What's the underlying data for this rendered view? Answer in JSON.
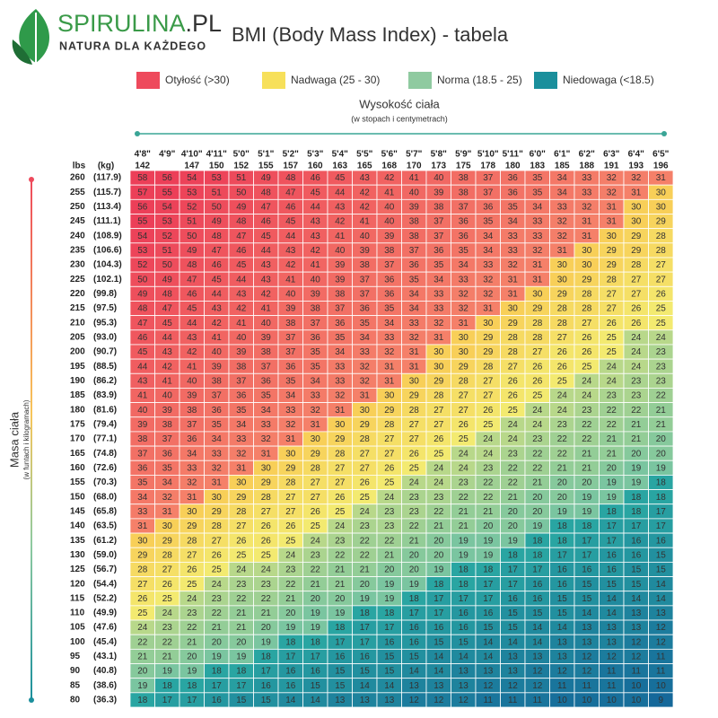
{
  "logo": {
    "name": "SPIRULINA",
    "suffix": ".PL",
    "tagline": "NATURA DLA KAŻDEGO"
  },
  "title": "BMI (Body Mass Index) - tabela",
  "legend": [
    {
      "label": "Otyłość (>30)",
      "color": "#ee4a5c",
      "min": 30
    },
    {
      "label": "Nadwaga (25 - 30)",
      "color": "#f7e05a",
      "min": 25
    },
    {
      "label": "Norma (18.5 - 25)",
      "color": "#8fcaa0",
      "min": 18.5
    },
    {
      "label": "Niedowaga (<18.5)",
      "color": "#1a8f9c"
    }
  ],
  "height_axis": {
    "title": "Wysokość ciała",
    "subtitle": "(w stopach i centymetrach)"
  },
  "weight_axis": {
    "title": "Masa ciała",
    "subtitle": "(w funtach i kilogramach)",
    "lbs_label": "lbs",
    "kg_label": "(kg)"
  },
  "table": {
    "heights_ft": [
      "4'8\"",
      "4'9\"",
      "4'10\"",
      "4'11\"",
      "5'0\"",
      "5'1\"",
      "5'2\"",
      "5'3\"",
      "5'4\"",
      "5'5\"",
      "5'6\"",
      "5'7\"",
      "5'8\"",
      "5'9\"",
      "5'10\"",
      "5'11\"",
      "6'0\"",
      "6'1\"",
      "6'2\"",
      "6'3\"",
      "6'4\"",
      "6'5\""
    ],
    "heights_cm": [
      142,
      null,
      147,
      150,
      152,
      155,
      157,
      160,
      163,
      165,
      168,
      170,
      173,
      175,
      178,
      180,
      183,
      185,
      188,
      191,
      193,
      196
    ],
    "weights_lbs": [
      260,
      255,
      250,
      245,
      240,
      235,
      230,
      225,
      220,
      215,
      210,
      205,
      200,
      195,
      190,
      185,
      180,
      175,
      170,
      165,
      160,
      155,
      150,
      145,
      140,
      135,
      130,
      125,
      120,
      115,
      110,
      105,
      100,
      95,
      90,
      85,
      80
    ],
    "weights_kg": [
      "(117.9)",
      "(115.7)",
      "(113.4)",
      "(111.1)",
      "(108.9)",
      "(106.6)",
      "(104.3)",
      "(102.1)",
      "(99.8)",
      "(97.5)",
      "(95.3)",
      "(93.0)",
      "(90.7)",
      "(88.5)",
      "(86.2)",
      "(83.9)",
      "(81.6)",
      "(79.4)",
      "(77.1)",
      "(74.8)",
      "(72.6)",
      "(70.3)",
      "(68.0)",
      "(65.8)",
      "(63.5)",
      "(61.2)",
      "(59.0)",
      "(56.7)",
      "(54.4)",
      "(52.2)",
      "(49.9)",
      "(47.6)",
      "(45.4)",
      "(43.1)",
      "(40.8)",
      "(38.6)",
      "(36.3)"
    ],
    "rows": [
      [
        58,
        56,
        54,
        53,
        51,
        49,
        48,
        46,
        45,
        43,
        42,
        41,
        40,
        38,
        37,
        36,
        35,
        34,
        33,
        32,
        32,
        31
      ],
      [
        57,
        55,
        53,
        51,
        50,
        48,
        47,
        45,
        44,
        42,
        41,
        40,
        39,
        38,
        37,
        36,
        35,
        34,
        33,
        32,
        31,
        30
      ],
      [
        56,
        54,
        52,
        50,
        49,
        47,
        46,
        44,
        43,
        42,
        40,
        39,
        38,
        37,
        36,
        35,
        34,
        33,
        32,
        31,
        30,
        30
      ],
      [
        55,
        53,
        51,
        49,
        48,
        46,
        45,
        43,
        42,
        41,
        40,
        38,
        37,
        36,
        35,
        34,
        33,
        32,
        31,
        31,
        30,
        29
      ],
      [
        54,
        52,
        50,
        48,
        47,
        45,
        44,
        43,
        41,
        40,
        39,
        38,
        37,
        36,
        34,
        33,
        33,
        32,
        31,
        30,
        29,
        28
      ],
      [
        53,
        51,
        49,
        47,
        46,
        44,
        43,
        42,
        40,
        39,
        38,
        37,
        36,
        35,
        34,
        33,
        32,
        31,
        30,
        29,
        29,
        28
      ],
      [
        52,
        50,
        48,
        46,
        45,
        43,
        42,
        41,
        39,
        38,
        37,
        36,
        35,
        34,
        33,
        32,
        31,
        30,
        30,
        29,
        28,
        27
      ],
      [
        50,
        49,
        47,
        45,
        44,
        43,
        41,
        40,
        39,
        37,
        36,
        35,
        34,
        33,
        32,
        31,
        31,
        30,
        29,
        28,
        27,
        27
      ],
      [
        49,
        48,
        46,
        44,
        43,
        42,
        40,
        39,
        38,
        37,
        36,
        34,
        33,
        32,
        32,
        31,
        30,
        29,
        28,
        27,
        27,
        26
      ],
      [
        48,
        47,
        45,
        43,
        42,
        41,
        39,
        38,
        37,
        36,
        35,
        34,
        33,
        32,
        31,
        30,
        29,
        28,
        28,
        27,
        26,
        25
      ],
      [
        47,
        45,
        44,
        42,
        41,
        40,
        38,
        37,
        36,
        35,
        34,
        33,
        32,
        31,
        30,
        29,
        28,
        28,
        27,
        26,
        26,
        25
      ],
      [
        46,
        44,
        43,
        41,
        40,
        39,
        37,
        36,
        35,
        34,
        33,
        32,
        31,
        30,
        29,
        28,
        28,
        27,
        26,
        25,
        24,
        24
      ],
      [
        45,
        43,
        42,
        40,
        39,
        38,
        37,
        35,
        34,
        33,
        32,
        31,
        30,
        30,
        29,
        28,
        27,
        26,
        26,
        25,
        24,
        23
      ],
      [
        44,
        42,
        41,
        39,
        38,
        37,
        36,
        35,
        33,
        32,
        31,
        31,
        30,
        29,
        28,
        27,
        26,
        26,
        25,
        24,
        24,
        23
      ],
      [
        43,
        41,
        40,
        38,
        37,
        36,
        35,
        34,
        33,
        32,
        31,
        30,
        29,
        28,
        27,
        26,
        26,
        25,
        24,
        24,
        23,
        23
      ],
      [
        41,
        40,
        39,
        37,
        36,
        35,
        34,
        33,
        32,
        31,
        30,
        29,
        28,
        27,
        27,
        26,
        25,
        24,
        24,
        23,
        23,
        22
      ],
      [
        40,
        39,
        38,
        36,
        35,
        34,
        33,
        32,
        31,
        30,
        29,
        28,
        27,
        27,
        26,
        25,
        24,
        24,
        23,
        22,
        22,
        21
      ],
      [
        39,
        38,
        37,
        35,
        34,
        33,
        32,
        31,
        30,
        29,
        28,
        27,
        27,
        26,
        25,
        24,
        24,
        23,
        22,
        22,
        21,
        21
      ],
      [
        38,
        37,
        36,
        34,
        33,
        32,
        31,
        30,
        29,
        28,
        27,
        27,
        26,
        25,
        24,
        24,
        23,
        22,
        22,
        21,
        21,
        20
      ],
      [
        37,
        36,
        34,
        33,
        32,
        31,
        30,
        29,
        28,
        27,
        27,
        26,
        25,
        24,
        24,
        23,
        22,
        22,
        21,
        21,
        20,
        20
      ],
      [
        36,
        35,
        33,
        32,
        31,
        30,
        29,
        28,
        27,
        27,
        26,
        25,
        24,
        24,
        23,
        22,
        22,
        21,
        21,
        20,
        19,
        19
      ],
      [
        35,
        34,
        32,
        31,
        30,
        29,
        28,
        27,
        27,
        26,
        25,
        24,
        24,
        23,
        22,
        22,
        21,
        20,
        20,
        19,
        19,
        18
      ],
      [
        34,
        32,
        31,
        30,
        29,
        28,
        27,
        27,
        26,
        25,
        24,
        23,
        23,
        22,
        22,
        21,
        20,
        20,
        19,
        19,
        18,
        18
      ],
      [
        33,
        31,
        30,
        29,
        28,
        27,
        27,
        26,
        25,
        24,
        23,
        23,
        22,
        21,
        21,
        20,
        20,
        19,
        19,
        18,
        18,
        17
      ],
      [
        31,
        30,
        29,
        28,
        27,
        26,
        26,
        25,
        24,
        23,
        23,
        22,
        21,
        21,
        20,
        20,
        19,
        18,
        18,
        17,
        17,
        17
      ],
      [
        30,
        29,
        28,
        27,
        26,
        26,
        25,
        24,
        23,
        22,
        22,
        21,
        20,
        19,
        19,
        19,
        18,
        18,
        17,
        17,
        16,
        16
      ],
      [
        29,
        28,
        27,
        26,
        25,
        25,
        24,
        23,
        22,
        22,
        21,
        20,
        20,
        19,
        19,
        18,
        18,
        17,
        17,
        16,
        16,
        15
      ],
      [
        28,
        27,
        26,
        25,
        24,
        24,
        23,
        22,
        21,
        21,
        20,
        20,
        19,
        18,
        18,
        17,
        17,
        16,
        16,
        16,
        15,
        15
      ],
      [
        27,
        26,
        25,
        24,
        23,
        23,
        22,
        21,
        21,
        20,
        19,
        19,
        18,
        18,
        17,
        17,
        16,
        16,
        15,
        15,
        15,
        14
      ],
      [
        26,
        25,
        24,
        23,
        22,
        22,
        21,
        20,
        20,
        19,
        19,
        18,
        17,
        17,
        17,
        16,
        16,
        15,
        15,
        14,
        14,
        14
      ],
      [
        25,
        24,
        23,
        22,
        21,
        21,
        20,
        19,
        19,
        18,
        18,
        17,
        17,
        16,
        16,
        15,
        15,
        15,
        14,
        14,
        13,
        13
      ],
      [
        24,
        23,
        22,
        21,
        21,
        20,
        19,
        19,
        18,
        17,
        17,
        16,
        16,
        16,
        15,
        15,
        14,
        14,
        13,
        13,
        13,
        12
      ],
      [
        22,
        22,
        21,
        20,
        20,
        19,
        18,
        18,
        17,
        17,
        16,
        16,
        15,
        15,
        14,
        14,
        14,
        13,
        13,
        13,
        12,
        12
      ],
      [
        21,
        21,
        20,
        19,
        19,
        18,
        17,
        17,
        16,
        16,
        15,
        15,
        14,
        14,
        14,
        13,
        13,
        13,
        12,
        12,
        12,
        11
      ],
      [
        20,
        19,
        19,
        18,
        18,
        17,
        16,
        16,
        15,
        15,
        15,
        14,
        14,
        13,
        13,
        13,
        12,
        12,
        12,
        11,
        11,
        11
      ],
      [
        19,
        18,
        18,
        17,
        17,
        16,
        16,
        15,
        15,
        14,
        14,
        13,
        13,
        13,
        12,
        12,
        12,
        11,
        11,
        11,
        10,
        10
      ],
      [
        18,
        17,
        17,
        16,
        15,
        15,
        14,
        14,
        13,
        13,
        13,
        12,
        12,
        12,
        11,
        11,
        11,
        10,
        10,
        10,
        10,
        9
      ]
    ]
  }
}
